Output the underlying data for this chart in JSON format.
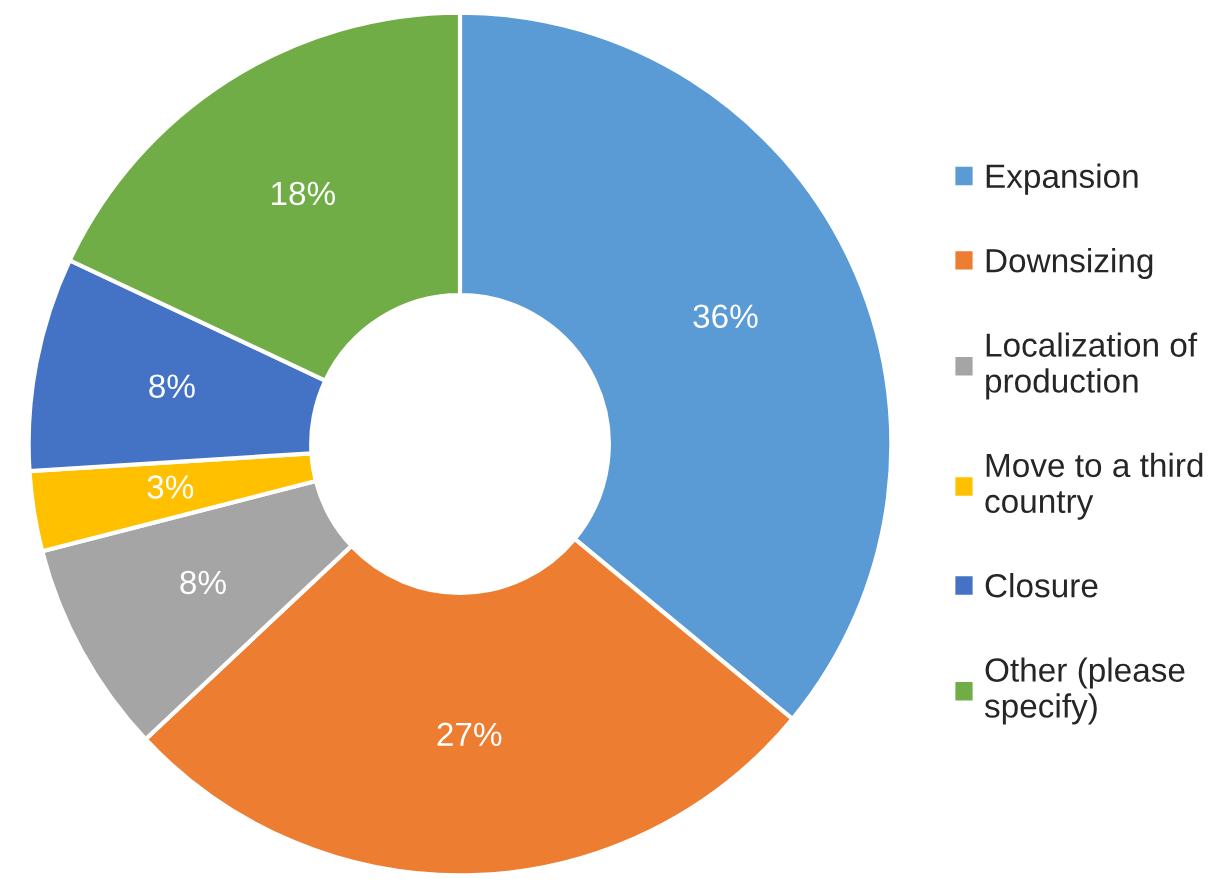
{
  "chart_data": {
    "type": "donut",
    "categories": [
      "Expansion",
      "Downsizing",
      "Localization of\nproduction",
      "Move to a third\ncountry",
      "Closure",
      "Other (please\nspecify)"
    ],
    "values": [
      36,
      27,
      8,
      3,
      8,
      18
    ],
    "value_labels": [
      "36%",
      "27%",
      "8%",
      "3%",
      "8%",
      "18%"
    ],
    "colors": [
      "#5b9bd5",
      "#ed7d31",
      "#a5a5a5",
      "#ffc000",
      "#4472c4",
      "#70ad47"
    ],
    "legend": "right"
  }
}
